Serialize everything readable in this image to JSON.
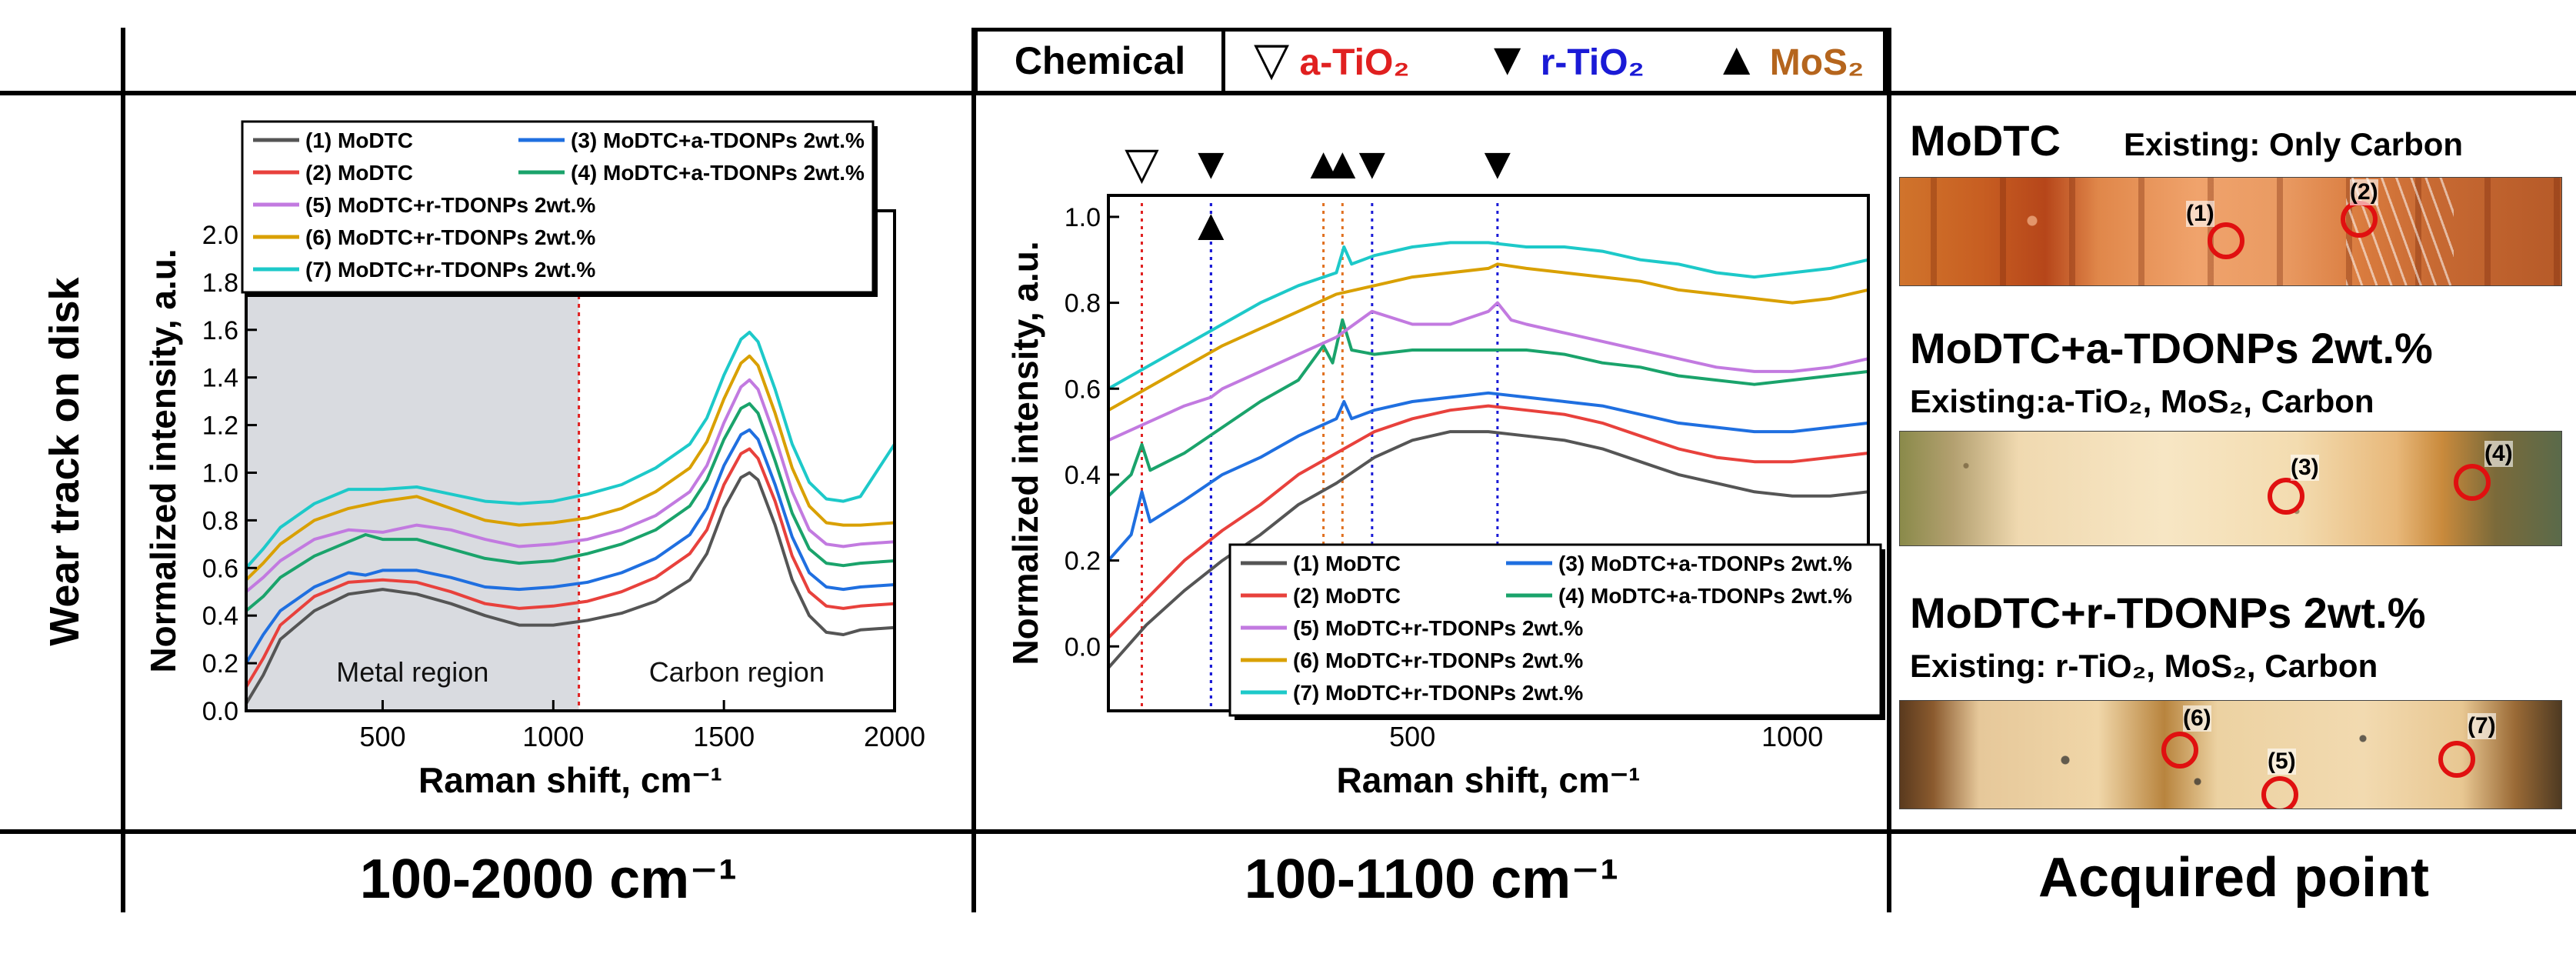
{
  "figure": {
    "row_label": "Wear track on disk",
    "col_labels": [
      "100-2000 cm⁻¹",
      "100-1100 cm⁻¹",
      "Acquired point"
    ],
    "chemical": {
      "label": "Chemical",
      "items": [
        {
          "symbol": "▽",
          "name": "a-TiO₂",
          "color": "#e02020"
        },
        {
          "symbol": "▼",
          "name": "r-TiO₂",
          "color": "#1a1ad6"
        },
        {
          "symbol": "▲",
          "name": "MoS₂",
          "color": "#b5651d"
        }
      ]
    }
  },
  "chart_data": [
    {
      "type": "line",
      "panel": "100-2000 cm-1",
      "xlabel": "Raman shift, cm⁻¹",
      "ylabel": "Normalized intensity, a.u.",
      "xlim": [
        100,
        2000
      ],
      "ylim": [
        0,
        2.1
      ],
      "xticks": [
        500,
        1000,
        1500,
        2000
      ],
      "yticks": [
        0.0,
        0.2,
        0.4,
        0.6,
        0.8,
        1.0,
        1.2,
        1.4,
        1.6,
        1.8,
        2.0
      ],
      "divider_x": 1075,
      "regions": [
        {
          "label": "Metal region",
          "x_range": [
            100,
            1075
          ],
          "shaded": true
        },
        {
          "label": "Carbon region",
          "x_range": [
            1075,
            2000
          ],
          "shaded": false
        }
      ],
      "series": [
        {
          "name": "(1) MoDTC",
          "color": "#555555",
          "x": [
            100,
            150,
            200,
            300,
            400,
            500,
            600,
            700,
            800,
            900,
            1000,
            1100,
            1200,
            1300,
            1400,
            1450,
            1500,
            1550,
            1575,
            1600,
            1650,
            1700,
            1750,
            1800,
            1850,
            1900,
            2000
          ],
          "y": [
            0.03,
            0.15,
            0.3,
            0.42,
            0.49,
            0.51,
            0.49,
            0.45,
            0.4,
            0.36,
            0.36,
            0.38,
            0.41,
            0.46,
            0.55,
            0.66,
            0.85,
            0.98,
            1.0,
            0.97,
            0.78,
            0.55,
            0.4,
            0.33,
            0.32,
            0.34,
            0.35
          ]
        },
        {
          "name": "(2) MoDTC",
          "color": "#e8413c",
          "x": [
            100,
            150,
            200,
            300,
            400,
            500,
            600,
            700,
            800,
            900,
            1000,
            1100,
            1200,
            1300,
            1400,
            1450,
            1500,
            1550,
            1575,
            1600,
            1650,
            1700,
            1750,
            1800,
            1850,
            1900,
            2000
          ],
          "y": [
            0.1,
            0.22,
            0.36,
            0.48,
            0.54,
            0.55,
            0.54,
            0.5,
            0.45,
            0.43,
            0.44,
            0.46,
            0.5,
            0.56,
            0.66,
            0.76,
            0.95,
            1.08,
            1.1,
            1.06,
            0.88,
            0.65,
            0.5,
            0.44,
            0.43,
            0.44,
            0.45
          ]
        },
        {
          "name": "(3) MoDTC+a-TDONPs 2wt.%",
          "color": "#1f6fe0",
          "x": [
            100,
            150,
            200,
            300,
            400,
            450,
            500,
            600,
            700,
            800,
            900,
            1000,
            1100,
            1200,
            1300,
            1400,
            1450,
            1500,
            1550,
            1575,
            1600,
            1650,
            1700,
            1750,
            1800,
            1850,
            1900,
            2000
          ],
          "y": [
            0.2,
            0.32,
            0.42,
            0.52,
            0.58,
            0.57,
            0.59,
            0.59,
            0.56,
            0.52,
            0.51,
            0.52,
            0.54,
            0.58,
            0.64,
            0.74,
            0.85,
            1.03,
            1.16,
            1.18,
            1.14,
            0.95,
            0.73,
            0.58,
            0.52,
            0.51,
            0.52,
            0.53
          ]
        },
        {
          "name": "(4) MoDTC+a-TDONPs 2wt.%",
          "color": "#1aa36b",
          "x": [
            100,
            150,
            200,
            300,
            400,
            450,
            500,
            600,
            700,
            800,
            900,
            1000,
            1100,
            1200,
            1300,
            1400,
            1450,
            1500,
            1550,
            1575,
            1600,
            1650,
            1700,
            1750,
            1800,
            1850,
            1900,
            2000
          ],
          "y": [
            0.42,
            0.48,
            0.56,
            0.65,
            0.71,
            0.74,
            0.72,
            0.72,
            0.68,
            0.64,
            0.62,
            0.63,
            0.66,
            0.7,
            0.76,
            0.86,
            0.97,
            1.14,
            1.27,
            1.29,
            1.25,
            1.05,
            0.83,
            0.68,
            0.62,
            0.61,
            0.62,
            0.63
          ]
        },
        {
          "name": "(5) MoDTC+r-TDONPs 2wt.%",
          "color": "#c27ae0",
          "x": [
            100,
            150,
            200,
            300,
            400,
            500,
            600,
            700,
            800,
            900,
            1000,
            1100,
            1200,
            1300,
            1400,
            1450,
            1500,
            1550,
            1575,
            1600,
            1650,
            1700,
            1750,
            1800,
            1850,
            1900,
            2000
          ],
          "y": [
            0.5,
            0.56,
            0.63,
            0.72,
            0.76,
            0.75,
            0.78,
            0.76,
            0.72,
            0.69,
            0.7,
            0.72,
            0.76,
            0.82,
            0.92,
            1.03,
            1.21,
            1.36,
            1.39,
            1.35,
            1.15,
            0.92,
            0.76,
            0.7,
            0.69,
            0.7,
            0.71
          ]
        },
        {
          "name": "(6) MoDTC+r-TDONPs 2wt.%",
          "color": "#d9a000",
          "x": [
            100,
            150,
            200,
            300,
            400,
            500,
            600,
            700,
            800,
            900,
            1000,
            1100,
            1200,
            1300,
            1400,
            1450,
            1500,
            1550,
            1575,
            1600,
            1650,
            1700,
            1750,
            1800,
            1850,
            1900,
            2000
          ],
          "y": [
            0.55,
            0.62,
            0.7,
            0.8,
            0.85,
            0.88,
            0.9,
            0.85,
            0.8,
            0.78,
            0.79,
            0.81,
            0.85,
            0.92,
            1.02,
            1.13,
            1.31,
            1.46,
            1.49,
            1.45,
            1.25,
            1.02,
            0.86,
            0.79,
            0.78,
            0.78,
            0.79
          ]
        },
        {
          "name": "(7) MoDTC+r-TDONPs 2wt.%",
          "color": "#1dc9c9",
          "x": [
            100,
            150,
            200,
            300,
            400,
            500,
            600,
            700,
            800,
            900,
            1000,
            1100,
            1200,
            1300,
            1400,
            1450,
            1500,
            1550,
            1575,
            1600,
            1650,
            1700,
            1750,
            1800,
            1850,
            1900,
            2000
          ],
          "y": [
            0.6,
            0.68,
            0.77,
            0.87,
            0.93,
            0.93,
            0.94,
            0.91,
            0.88,
            0.87,
            0.88,
            0.91,
            0.95,
            1.02,
            1.12,
            1.23,
            1.41,
            1.56,
            1.59,
            1.55,
            1.35,
            1.12,
            0.96,
            0.89,
            0.88,
            0.9,
            1.12
          ]
        }
      ]
    },
    {
      "type": "line",
      "panel": "100-1100 cm-1",
      "xlabel": "Raman shift, cm⁻¹",
      "ylabel": "Normalized intensity, a.u.",
      "xlim": [
        100,
        1100
      ],
      "ylim": [
        -0.15,
        1.05
      ],
      "xticks": [
        500,
        1000
      ],
      "yticks": [
        0.0,
        0.2,
        0.4,
        0.6,
        0.8,
        1.0
      ],
      "reference_lines": [
        {
          "x": 144,
          "chemical": "a-TiO₂",
          "color": "#e02020",
          "marker": "▽"
        },
        {
          "x": 235,
          "chemical": "r-TiO₂",
          "color": "#1a1ad6",
          "marker": "▼"
        },
        {
          "x": 235,
          "chemical": "r-TiO₂",
          "color": "#1a1ad6",
          "marker": "▲"
        },
        {
          "x": 383,
          "chemical": "MoS₂",
          "color": "#e07020",
          "marker": "▲"
        },
        {
          "x": 408,
          "chemical": "MoS₂",
          "color": "#e07020",
          "marker": "▲"
        },
        {
          "x": 447,
          "chemical": "r-TiO₂",
          "color": "#1a1ad6",
          "marker": "▼"
        },
        {
          "x": 612,
          "chemical": "r-TiO₂",
          "color": "#1a1ad6",
          "marker": "▼"
        }
      ],
      "series": [
        {
          "name": "(1) MoDTC",
          "color": "#555555",
          "x": [
            100,
            150,
            200,
            250,
            300,
            350,
            400,
            450,
            500,
            550,
            600,
            650,
            700,
            750,
            800,
            850,
            900,
            950,
            1000,
            1050,
            1100
          ],
          "y": [
            -0.05,
            0.05,
            0.13,
            0.2,
            0.26,
            0.33,
            0.38,
            0.44,
            0.48,
            0.5,
            0.5,
            0.49,
            0.48,
            0.46,
            0.43,
            0.4,
            0.38,
            0.36,
            0.35,
            0.35,
            0.36
          ]
        },
        {
          "name": "(2) MoDTC",
          "color": "#e8413c",
          "x": [
            100,
            150,
            200,
            250,
            300,
            350,
            400,
            450,
            500,
            550,
            600,
            650,
            700,
            750,
            800,
            850,
            900,
            950,
            1000,
            1050,
            1100
          ],
          "y": [
            0.02,
            0.11,
            0.2,
            0.27,
            0.33,
            0.4,
            0.45,
            0.5,
            0.53,
            0.55,
            0.56,
            0.55,
            0.54,
            0.52,
            0.49,
            0.46,
            0.44,
            0.43,
            0.43,
            0.44,
            0.45
          ]
        },
        {
          "name": "(3) MoDTC+a-TDONPs 2wt.%",
          "color": "#1f6fe0",
          "x": [
            100,
            130,
            144,
            155,
            200,
            250,
            300,
            350,
            400,
            410,
            420,
            450,
            500,
            550,
            600,
            650,
            700,
            750,
            800,
            850,
            900,
            950,
            1000,
            1050,
            1100
          ],
          "y": [
            0.2,
            0.26,
            0.36,
            0.29,
            0.34,
            0.4,
            0.44,
            0.49,
            0.53,
            0.57,
            0.53,
            0.55,
            0.57,
            0.58,
            0.59,
            0.58,
            0.57,
            0.56,
            0.54,
            0.52,
            0.51,
            0.5,
            0.5,
            0.51,
            0.52
          ]
        },
        {
          "name": "(4) MoDTC+a-TDONPs 2wt.%",
          "color": "#1aa36b",
          "x": [
            100,
            130,
            144,
            155,
            200,
            250,
            300,
            350,
            383,
            395,
            408,
            420,
            450,
            500,
            550,
            600,
            650,
            700,
            750,
            800,
            850,
            900,
            950,
            1000,
            1050,
            1100
          ],
          "y": [
            0.35,
            0.4,
            0.47,
            0.41,
            0.45,
            0.51,
            0.57,
            0.62,
            0.7,
            0.66,
            0.76,
            0.69,
            0.68,
            0.69,
            0.69,
            0.69,
            0.69,
            0.68,
            0.66,
            0.65,
            0.63,
            0.62,
            0.61,
            0.62,
            0.63,
            0.64
          ]
        },
        {
          "name": "(5) MoDTC+r-TDONPs 2wt.%",
          "color": "#c27ae0",
          "x": [
            100,
            150,
            200,
            235,
            250,
            300,
            350,
            400,
            447,
            500,
            550,
            600,
            612,
            630,
            650,
            700,
            750,
            800,
            850,
            900,
            950,
            1000,
            1050,
            1100
          ],
          "y": [
            0.48,
            0.52,
            0.56,
            0.58,
            0.6,
            0.64,
            0.68,
            0.72,
            0.78,
            0.75,
            0.75,
            0.78,
            0.8,
            0.76,
            0.75,
            0.73,
            0.71,
            0.69,
            0.67,
            0.65,
            0.64,
            0.64,
            0.65,
            0.67
          ]
        },
        {
          "name": "(6) MoDTC+r-TDONPs 2wt.%",
          "color": "#d9a000",
          "x": [
            100,
            150,
            200,
            250,
            300,
            350,
            400,
            450,
            500,
            550,
            600,
            612,
            650,
            700,
            750,
            800,
            850,
            900,
            950,
            1000,
            1050,
            1100
          ],
          "y": [
            0.55,
            0.6,
            0.65,
            0.7,
            0.74,
            0.78,
            0.82,
            0.84,
            0.86,
            0.87,
            0.88,
            0.89,
            0.88,
            0.87,
            0.86,
            0.85,
            0.83,
            0.82,
            0.81,
            0.8,
            0.81,
            0.83
          ]
        },
        {
          "name": "(7) MoDTC+r-TDONPs 2wt.%",
          "color": "#1dc9c9",
          "x": [
            100,
            150,
            200,
            250,
            300,
            350,
            400,
            410,
            420,
            450,
            500,
            550,
            600,
            650,
            700,
            750,
            800,
            850,
            900,
            950,
            1000,
            1050,
            1100
          ],
          "y": [
            0.6,
            0.65,
            0.7,
            0.75,
            0.8,
            0.84,
            0.87,
            0.93,
            0.89,
            0.91,
            0.93,
            0.94,
            0.94,
            0.93,
            0.93,
            0.92,
            0.9,
            0.89,
            0.87,
            0.86,
            0.87,
            0.88,
            0.9
          ]
        }
      ]
    }
  ],
  "legend": {
    "entries": [
      {
        "label": "(1) MoDTC",
        "color": "#555555"
      },
      {
        "label": "(3) MoDTC+a-TDONPs 2wt.%",
        "color": "#1f6fe0"
      },
      {
        "label": "(2) MoDTC",
        "color": "#e8413c"
      },
      {
        "label": "(4) MoDTC+a-TDONPs 2wt.%",
        "color": "#1aa36b"
      },
      {
        "label": "(5) MoDTC+r-TDONPs 2wt.%",
        "color": "#c27ae0"
      },
      {
        "label": "(6) MoDTC+r-TDONPs 2wt.%",
        "color": "#d9a000"
      },
      {
        "label": "(7) MoDTC+r-TDONPs 2wt.%",
        "color": "#1dc9c9"
      }
    ]
  },
  "acquired": {
    "sections": [
      {
        "title": "MoDTC",
        "subtitle": "Existing: Only Carbon",
        "points": [
          "(1)",
          "(2)"
        ]
      },
      {
        "title": "MoDTC+a-TDONPs 2wt.%",
        "subtitle": "Existing:a-TiO₂, MoS₂, Carbon",
        "points": [
          "(3)",
          "(4)"
        ]
      },
      {
        "title": "MoDTC+r-TDONPs 2wt.%",
        "subtitle": "Existing: r-TiO₂, MoS₂, Carbon",
        "points": [
          "(6)",
          "(5)",
          "(7)"
        ]
      }
    ]
  }
}
